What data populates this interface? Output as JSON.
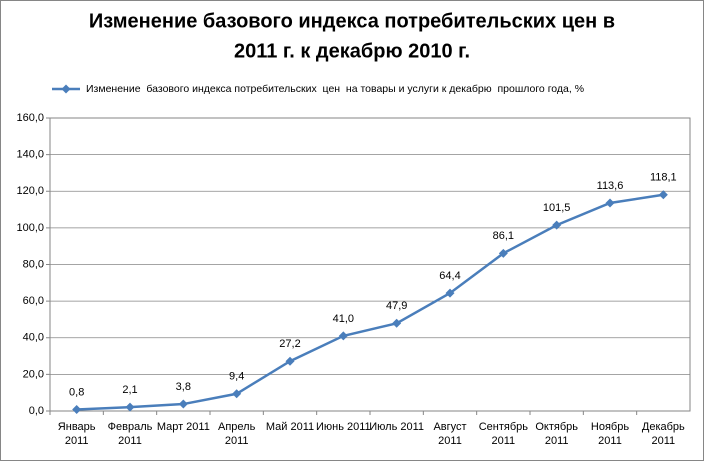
{
  "chart_data": {
    "type": "line",
    "title": [
      "Изменение базового индекса потребительских цен в",
      "2011 г. к декабрю 2010 г."
    ],
    "categories": [
      "Январь 2011",
      "Февраль 2011",
      "Март 2011",
      "Апрель 2011",
      "Май 2011",
      "Июнь 2011",
      "Июль 2011",
      "Август 2011",
      "Сентябрь 2011",
      "Октябрь 2011",
      "Ноябрь 2011",
      "Декабрь 2011"
    ],
    "series": [
      {
        "name": "Изменение  базового индекса потребительских  цен  на товары и услуги к декабрю  прошлого года, %",
        "color": "#4a7ebb",
        "values": [
          0.8,
          2.1,
          3.8,
          9.4,
          27.2,
          41.0,
          47.9,
          64.4,
          86.1,
          101.5,
          113.6,
          118.1
        ],
        "value_labels": [
          "0,8",
          "2,1",
          "3,8",
          "9,4",
          "27,2",
          "41,0",
          "47,9",
          "64,4",
          "86,1",
          "101,5",
          "113,6",
          "118,1"
        ]
      }
    ],
    "ylim": [
      0,
      160
    ],
    "yticks": [
      {
        "value": 0,
        "label": "0,0"
      },
      {
        "value": 20,
        "label": "20,0"
      },
      {
        "value": 40,
        "label": "40,0"
      },
      {
        "value": 60,
        "label": "60,0"
      },
      {
        "value": 80,
        "label": "80,0"
      },
      {
        "value": 100,
        "label": "100,0"
      },
      {
        "value": 120,
        "label": "120,0"
      },
      {
        "value": 140,
        "label": "140,0"
      },
      {
        "value": 160,
        "label": "160,0"
      }
    ],
    "grid": true,
    "legend": "top"
  }
}
